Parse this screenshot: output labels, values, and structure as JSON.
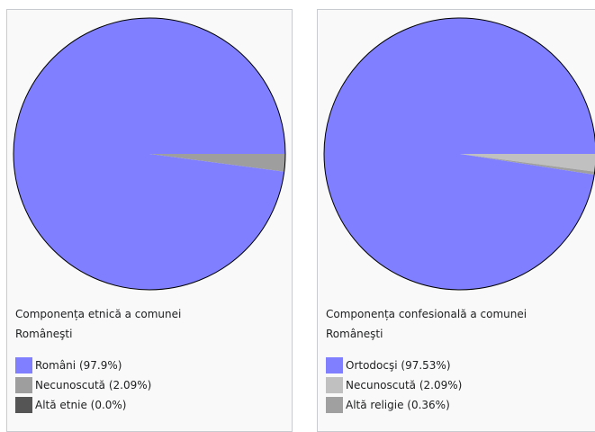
{
  "chart_data": [
    {
      "type": "pie",
      "title": "Componența etnică a comunei Româneşti",
      "title_lines": [
        "Componența etnică a comunei",
        "Româneşti"
      ],
      "series": [
        {
          "name": "Români",
          "value": 97.9,
          "label": "Români (97.9%)",
          "color": "#7f7fff"
        },
        {
          "name": "Necunoscută",
          "value": 2.09,
          "label": "Necunoscută (2.09%)",
          "color": "#9e9e9e"
        },
        {
          "name": "Altă etnie",
          "value": 0.0,
          "label": "Altă etnie (0.0%)",
          "color": "#555555"
        }
      ]
    },
    {
      "type": "pie",
      "title": "Componența confesională a comunei Româneşti",
      "title_lines": [
        "Componența confesională a comunei",
        "Româneşti"
      ],
      "series": [
        {
          "name": "Ortodocşi",
          "value": 97.53,
          "label": "Ortodocşi (97.53%)",
          "color": "#7f7fff"
        },
        {
          "name": "Necunoscută",
          "value": 2.09,
          "label": "Necunoscută (2.09%)",
          "color": "#c0c0c0"
        },
        {
          "name": "Altă religie",
          "value": 0.36,
          "label": "Altă religie (0.36%)",
          "color": "#a0a0a0"
        }
      ]
    }
  ],
  "style": {
    "pie_border_color": "#000000"
  }
}
